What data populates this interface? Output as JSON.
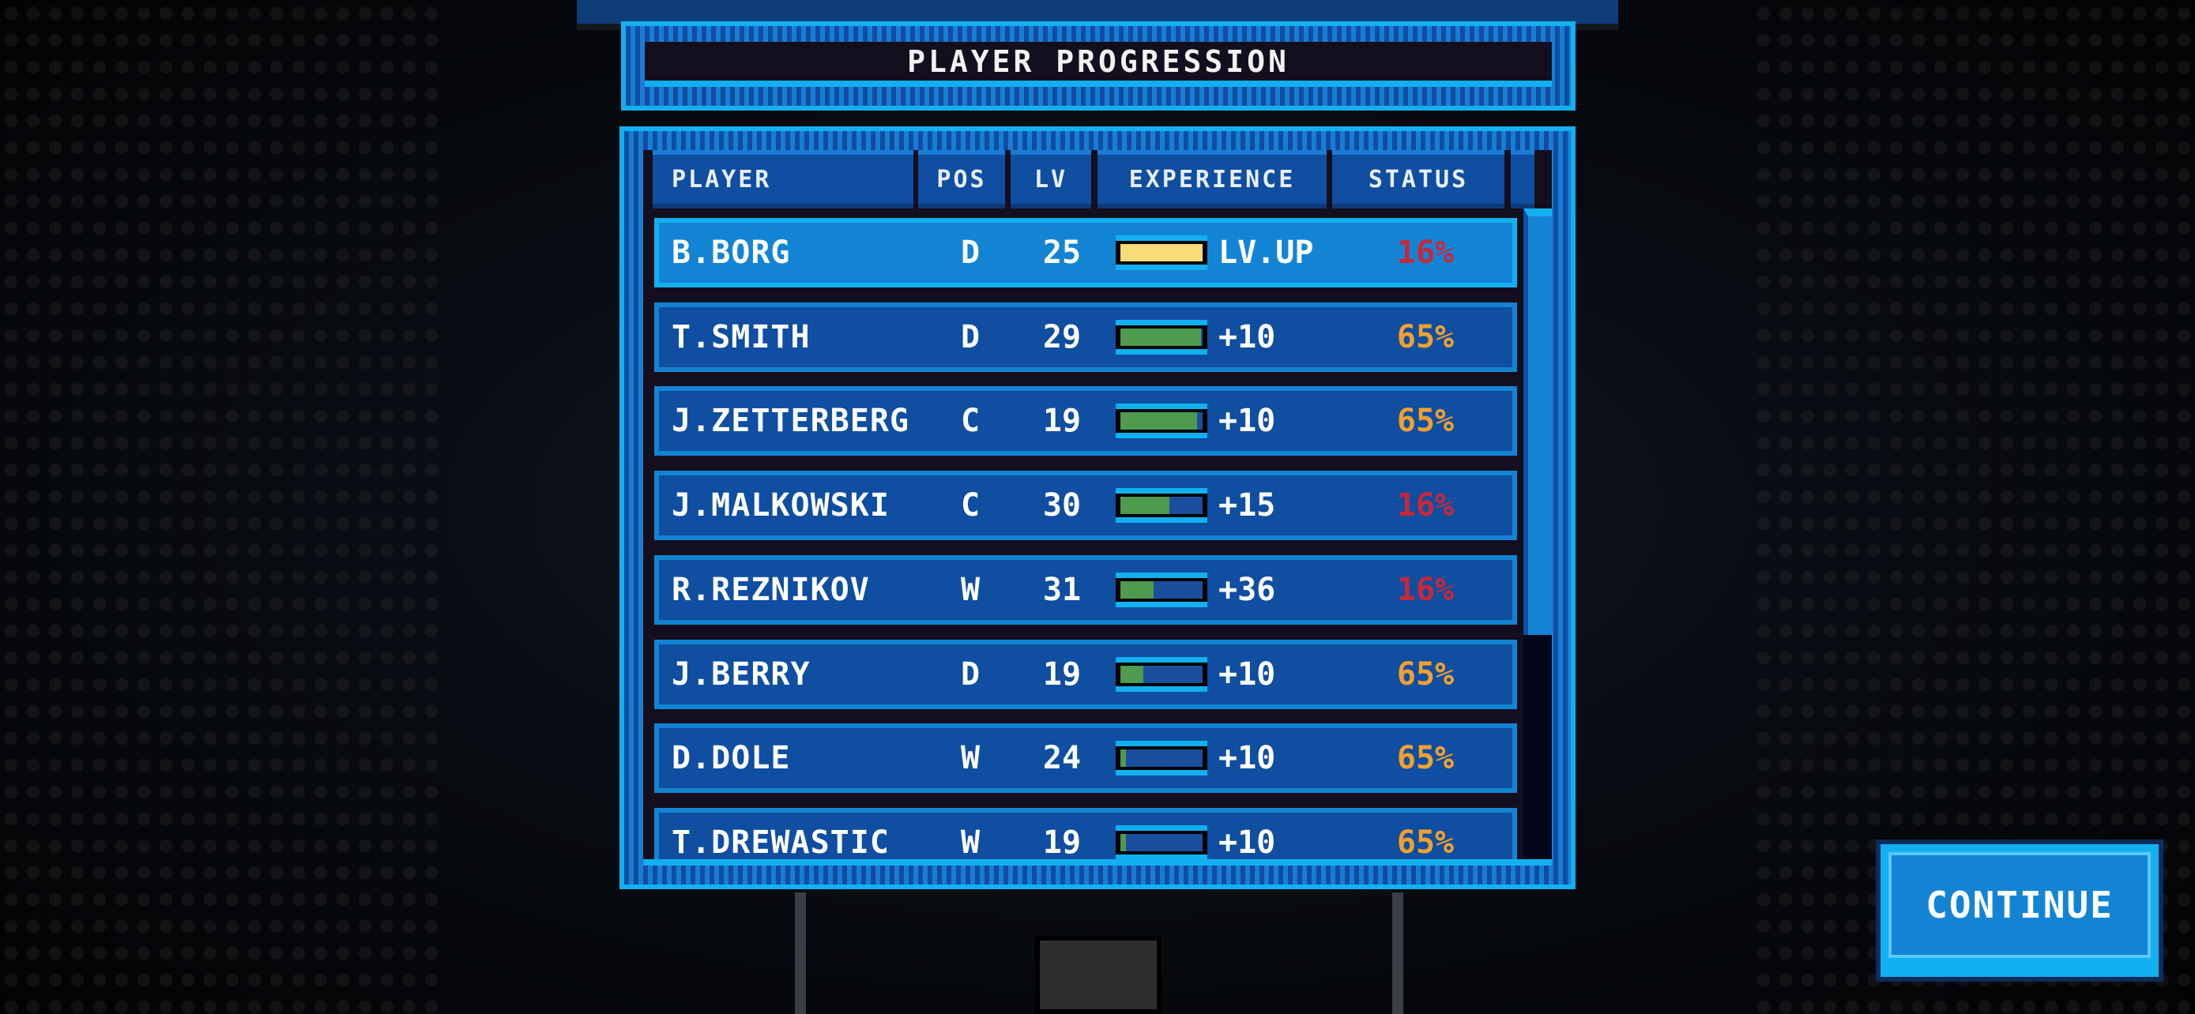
{
  "title": "PLAYER PROGRESSION",
  "columns": [
    "PLAYER",
    "POS",
    "LV",
    "EXPERIENCE",
    "STATUS"
  ],
  "colors": {
    "status_low": "#c8283a",
    "status_mid": "#f0a030",
    "exp_fill": "#4e9a4e",
    "exp_levelup": "#f8dc78"
  },
  "rows": [
    {
      "name": "B.BORG",
      "pos": "D",
      "lv": "25",
      "exp_fill": 1.0,
      "exp_text": "LV.UP",
      "status": "16%",
      "status_level": "low",
      "selected": true
    },
    {
      "name": "T.SMITH",
      "pos": "D",
      "lv": "29",
      "exp_fill": 0.98,
      "exp_text": "+10",
      "status": "65%",
      "status_level": "mid"
    },
    {
      "name": "J.ZETTERBERG",
      "pos": "C",
      "lv": "19",
      "exp_fill": 0.93,
      "exp_text": "+10",
      "status": "65%",
      "status_level": "mid"
    },
    {
      "name": "J.MALKOWSKI",
      "pos": "C",
      "lv": "30",
      "exp_fill": 0.6,
      "exp_text": "+15",
      "status": "16%",
      "status_level": "low"
    },
    {
      "name": "R.REZNIKOV",
      "pos": "W",
      "lv": "31",
      "exp_fill": 0.4,
      "exp_text": "+36",
      "status": "16%",
      "status_level": "low"
    },
    {
      "name": "J.BERRY",
      "pos": "D",
      "lv": "19",
      "exp_fill": 0.28,
      "exp_text": "+10",
      "status": "65%",
      "status_level": "mid"
    },
    {
      "name": "D.DOLE",
      "pos": "W",
      "lv": "24",
      "exp_fill": 0.07,
      "exp_text": "+10",
      "status": "65%",
      "status_level": "mid"
    },
    {
      "name": "T.DREWASTIC",
      "pos": "W",
      "lv": "19",
      "exp_fill": 0.07,
      "exp_text": "+10",
      "status": "65%",
      "status_level": "mid"
    }
  ],
  "continue_label": "CONTINUE"
}
